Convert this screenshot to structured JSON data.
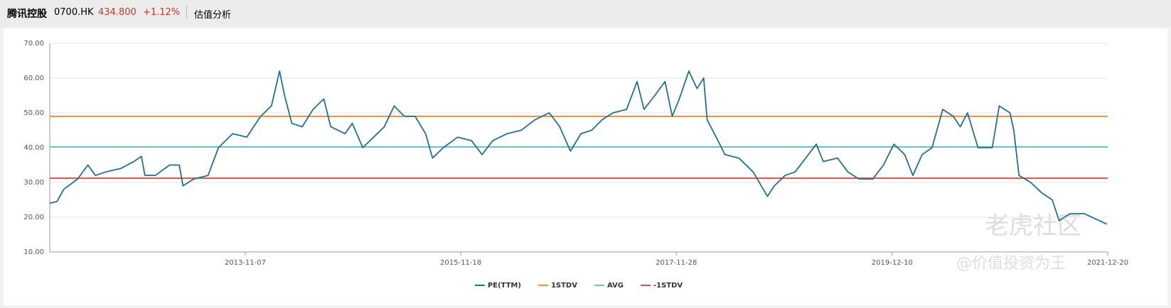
{
  "header": {
    "name": "腾讯控股",
    "code": "0700.HK",
    "price": "434.800",
    "change": "+1.12%",
    "tab": "估值分析"
  },
  "watermark": {
    "brand": "老虎社区",
    "author": "@价值投资为王"
  },
  "chart_data": {
    "type": "line",
    "x": [
      "2012-01-05",
      "2012-01-30",
      "2012-02-22",
      "2012-04-10",
      "2012-05-15",
      "2012-06-10",
      "2012-07-15",
      "2012-09-05",
      "2012-10-20",
      "2012-11-15",
      "2012-11-27",
      "2013-01-02",
      "2013-02-20",
      "2013-03-25",
      "2013-04-07",
      "2013-05-14",
      "2013-07-02",
      "2013-08-07",
      "2013-09-25",
      "2013-11-12",
      "2013-12-30",
      "2014-02-05",
      "2014-03-05",
      "2014-03-22",
      "2014-04-16",
      "2014-05-22",
      "2014-06-28",
      "2014-08-04",
      "2014-08-28",
      "2014-10-16",
      "2014-11-10",
      "2014-12-16",
      "2015-01-22",
      "2015-02-28",
      "2015-04-03",
      "2015-05-08",
      "2015-06-14",
      "2015-07-20",
      "2015-08-13",
      "2015-09-19",
      "2015-11-07",
      "2015-12-25",
      "2016-01-30",
      "2016-03-07",
      "2016-04-25",
      "2016-06-13",
      "2016-07-30",
      "2016-09-17",
      "2016-10-23",
      "2016-11-29",
      "2017-01-04",
      "2017-02-10",
      "2017-03-18",
      "2017-04-24",
      "2017-06-10",
      "2017-07-16",
      "2017-08-09",
      "2017-09-15",
      "2017-10-20",
      "2017-11-14",
      "2017-12-08",
      "2018-01-10",
      "2018-02-07",
      "2018-03-02",
      "2018-03-14",
      "2018-04-20",
      "2018-05-14",
      "2018-07-01",
      "2018-08-19",
      "2018-10-07",
      "2018-10-31",
      "2018-12-07",
      "2019-01-10",
      "2019-02-16",
      "2019-03-24",
      "2019-04-17",
      "2019-06-05",
      "2019-07-11",
      "2019-08-17",
      "2019-10-05",
      "2019-11-10",
      "2019-12-16",
      "2020-01-22",
      "2020-02-19",
      "2020-03-22",
      "2020-04-25",
      "2020-06-01",
      "2020-07-07",
      "2020-07-31",
      "2020-08-25",
      "2020-09-30",
      "2020-11-18",
      "2020-12-12",
      "2021-01-18",
      "2021-01-31",
      "2021-02-18",
      "2021-03-30",
      "2021-05-07",
      "2021-06-12",
      "2021-07-06",
      "2021-08-12",
      "2021-09-30",
      "2021-12-17"
    ],
    "series": [
      {
        "name": "PE(TTM)",
        "color": "#24708f",
        "values": [
          24,
          24.5,
          28,
          31,
          35,
          32,
          33,
          34,
          36,
          37.5,
          32,
          32,
          35,
          35,
          29,
          31,
          32,
          40,
          44,
          43,
          49,
          52,
          62,
          55,
          47,
          46,
          51,
          54,
          46,
          44,
          47,
          40,
          43,
          46,
          52,
          49,
          49,
          44,
          37,
          40,
          43,
          42,
          38,
          42,
          44,
          45,
          48,
          50,
          46,
          39,
          44,
          45,
          48,
          50,
          51,
          59,
          51,
          55,
          59,
          49,
          54,
          62,
          57,
          60,
          48,
          42,
          38,
          37,
          33,
          26,
          29,
          32,
          33,
          37,
          41,
          36,
          37,
          33,
          31,
          31,
          35,
          41,
          38,
          32,
          38,
          40,
          51,
          49,
          46,
          50,
          40,
          40,
          52,
          50,
          45,
          32,
          30,
          27,
          25,
          19,
          21,
          21,
          18
        ]
      }
    ],
    "lines": [
      {
        "name": "1STDV",
        "color": "#f0913a",
        "value": 49
      },
      {
        "name": "AVG",
        "color": "#6cc4c9",
        "value": 40.2
      },
      {
        "name": "-1STDV",
        "color": "#d9534f",
        "value": 31.2
      }
    ],
    "xlim": [
      "2012-01-05",
      "2021-12-20"
    ],
    "xticks": [
      "2013-11-07",
      "2015-11-18",
      "2017-11-28",
      "2019-12-10",
      "2021-12-20"
    ],
    "ylim": [
      10,
      70
    ],
    "yticks": [
      {
        "value": 10,
        "label": "10.00"
      },
      {
        "value": 20,
        "label": "20.00"
      },
      {
        "value": 30,
        "label": "30.00"
      },
      {
        "value": 40,
        "label": "40.00"
      },
      {
        "value": 50,
        "label": "50.00"
      },
      {
        "value": 60,
        "label": "60.00"
      },
      {
        "value": 70,
        "label": "70.00"
      }
    ],
    "grid": true,
    "legend": "bottom"
  }
}
